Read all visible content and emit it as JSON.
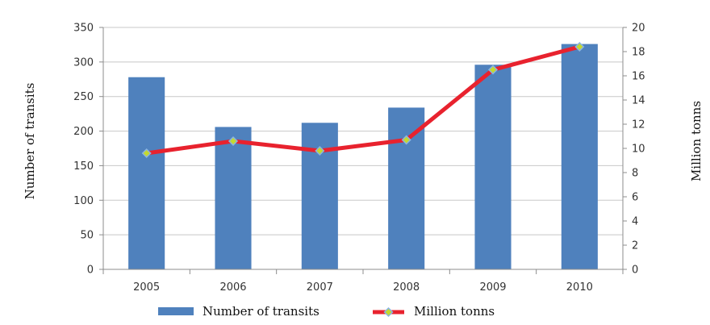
{
  "colors": {
    "bar": "#4f81bd",
    "line": "#e8222e",
    "marker_fill": "#c4d92f",
    "marker_stroke": "#8ab4e0",
    "grid": "#c8c8c8",
    "axis": "#8c8c8c"
  },
  "chart_data": {
    "type": "bar",
    "categories": [
      "2005",
      "2006",
      "2007",
      "2008",
      "2009",
      "2010"
    ],
    "series": [
      {
        "name": "Number of transits",
        "type": "bar",
        "axis": "left",
        "values": [
          278,
          206,
          212,
          234,
          296,
          326
        ]
      },
      {
        "name": "Million tonns",
        "type": "line",
        "axis": "right",
        "values": [
          9.6,
          10.6,
          9.8,
          10.7,
          16.5,
          18.4
        ]
      }
    ],
    "ylabel": "Number of transits",
    "y2label": "Million tonns",
    "ylim": [
      0,
      350
    ],
    "y2lim": [
      0,
      20
    ],
    "yticks": [
      "0",
      "50",
      "100",
      "150",
      "200",
      "250",
      "300",
      "350"
    ],
    "y2ticks": [
      "0",
      "2",
      "4",
      "6",
      "8",
      "10",
      "12",
      "14",
      "16",
      "18",
      "20"
    ],
    "grid": "horizontal",
    "legend_position": "bottom"
  }
}
